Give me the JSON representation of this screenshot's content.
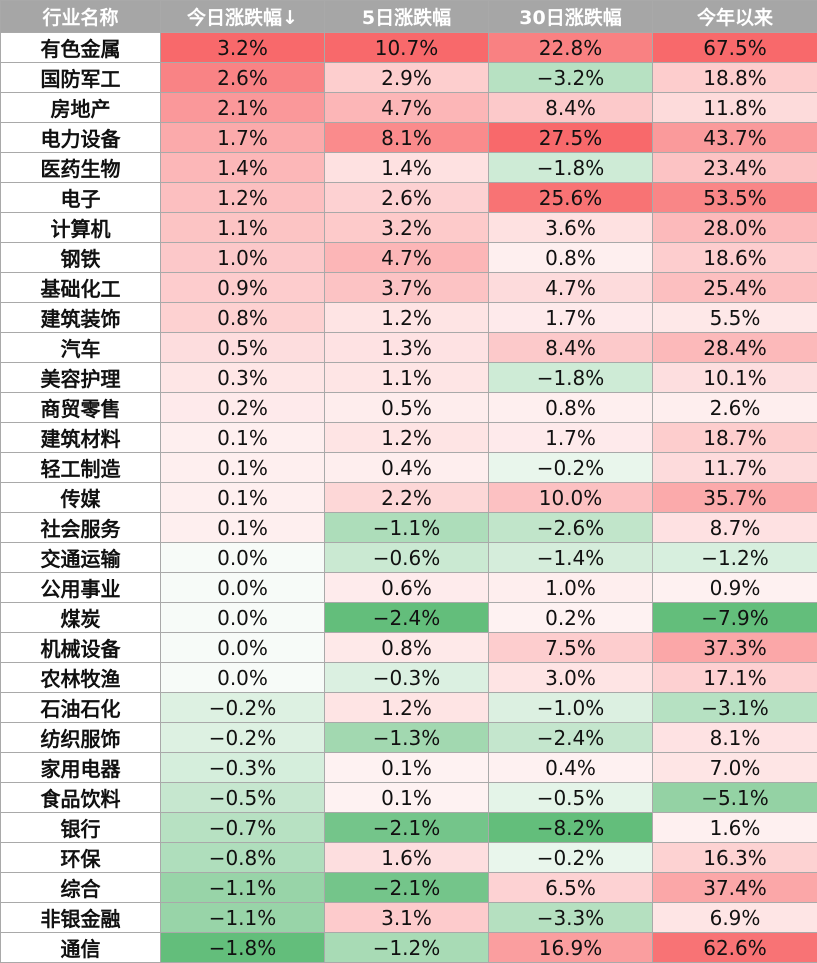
{
  "chart_data": {
    "type": "table",
    "columns": [
      "行业名称",
      "今日涨跌幅↓",
      "5日涨跌幅",
      "30日涨跌幅",
      "今年以来"
    ],
    "colors": {
      "positive": "#f8696b",
      "negative": "#63be7b",
      "neutral": "#ffffff"
    },
    "rows": [
      {
        "name": "有色金属",
        "values": [
          3.2,
          10.7,
          22.8,
          67.5
        ]
      },
      {
        "name": "国防军工",
        "values": [
          2.6,
          2.9,
          -3.2,
          18.8
        ]
      },
      {
        "name": "房地产",
        "values": [
          2.1,
          4.7,
          8.4,
          11.8
        ]
      },
      {
        "name": "电力设备",
        "values": [
          1.7,
          8.1,
          27.5,
          43.7
        ]
      },
      {
        "name": "医药生物",
        "values": [
          1.4,
          1.4,
          -1.8,
          23.4
        ]
      },
      {
        "name": "电子",
        "values": [
          1.2,
          2.6,
          25.6,
          53.5
        ]
      },
      {
        "name": "计算机",
        "values": [
          1.1,
          3.2,
          3.6,
          28.0
        ]
      },
      {
        "name": "钢铁",
        "values": [
          1.0,
          4.7,
          0.8,
          18.6
        ]
      },
      {
        "name": "基础化工",
        "values": [
          0.9,
          3.7,
          4.7,
          25.4
        ]
      },
      {
        "name": "建筑装饰",
        "values": [
          0.8,
          1.2,
          1.7,
          5.5
        ]
      },
      {
        "name": "汽车",
        "values": [
          0.5,
          1.3,
          8.4,
          28.4
        ]
      },
      {
        "name": "美容护理",
        "values": [
          0.3,
          1.1,
          -1.8,
          10.1
        ]
      },
      {
        "name": "商贸零售",
        "values": [
          0.2,
          0.5,
          0.8,
          2.6
        ]
      },
      {
        "name": "建筑材料",
        "values": [
          0.1,
          1.2,
          1.7,
          18.7
        ]
      },
      {
        "name": "轻工制造",
        "values": [
          0.1,
          0.4,
          -0.2,
          11.7
        ]
      },
      {
        "name": "传媒",
        "values": [
          0.1,
          2.2,
          10.0,
          35.7
        ]
      },
      {
        "name": "社会服务",
        "values": [
          0.1,
          -1.1,
          -2.6,
          8.7
        ]
      },
      {
        "name": "交通运输",
        "values": [
          0.0,
          -0.6,
          -1.4,
          -1.2
        ]
      },
      {
        "name": "公用事业",
        "values": [
          0.0,
          0.6,
          1.0,
          0.9
        ]
      },
      {
        "name": "煤炭",
        "values": [
          0.0,
          -2.4,
          0.2,
          -7.9
        ]
      },
      {
        "name": "机械设备",
        "values": [
          0.0,
          0.8,
          7.5,
          37.3
        ]
      },
      {
        "name": "农林牧渔",
        "values": [
          0.0,
          -0.3,
          3.0,
          17.1
        ]
      },
      {
        "name": "石油石化",
        "values": [
          -0.2,
          1.2,
          -1.0,
          -3.1
        ]
      },
      {
        "name": "纺织服饰",
        "values": [
          -0.2,
          -1.3,
          -2.4,
          8.1
        ]
      },
      {
        "name": "家用电器",
        "values": [
          -0.3,
          0.1,
          0.4,
          7.0
        ]
      },
      {
        "name": "食品饮料",
        "values": [
          -0.5,
          0.1,
          -0.5,
          -5.1
        ]
      },
      {
        "name": "银行",
        "values": [
          -0.7,
          -2.1,
          -8.2,
          1.6
        ]
      },
      {
        "name": "环保",
        "values": [
          -0.8,
          1.6,
          -0.2,
          16.3
        ]
      },
      {
        "name": "综合",
        "values": [
          -1.1,
          -2.1,
          6.5,
          37.4
        ]
      },
      {
        "name": "非银金融",
        "values": [
          -1.1,
          3.1,
          -3.3,
          6.9
        ]
      },
      {
        "name": "通信",
        "values": [
          -1.8,
          -1.2,
          16.9,
          62.6
        ]
      }
    ]
  }
}
